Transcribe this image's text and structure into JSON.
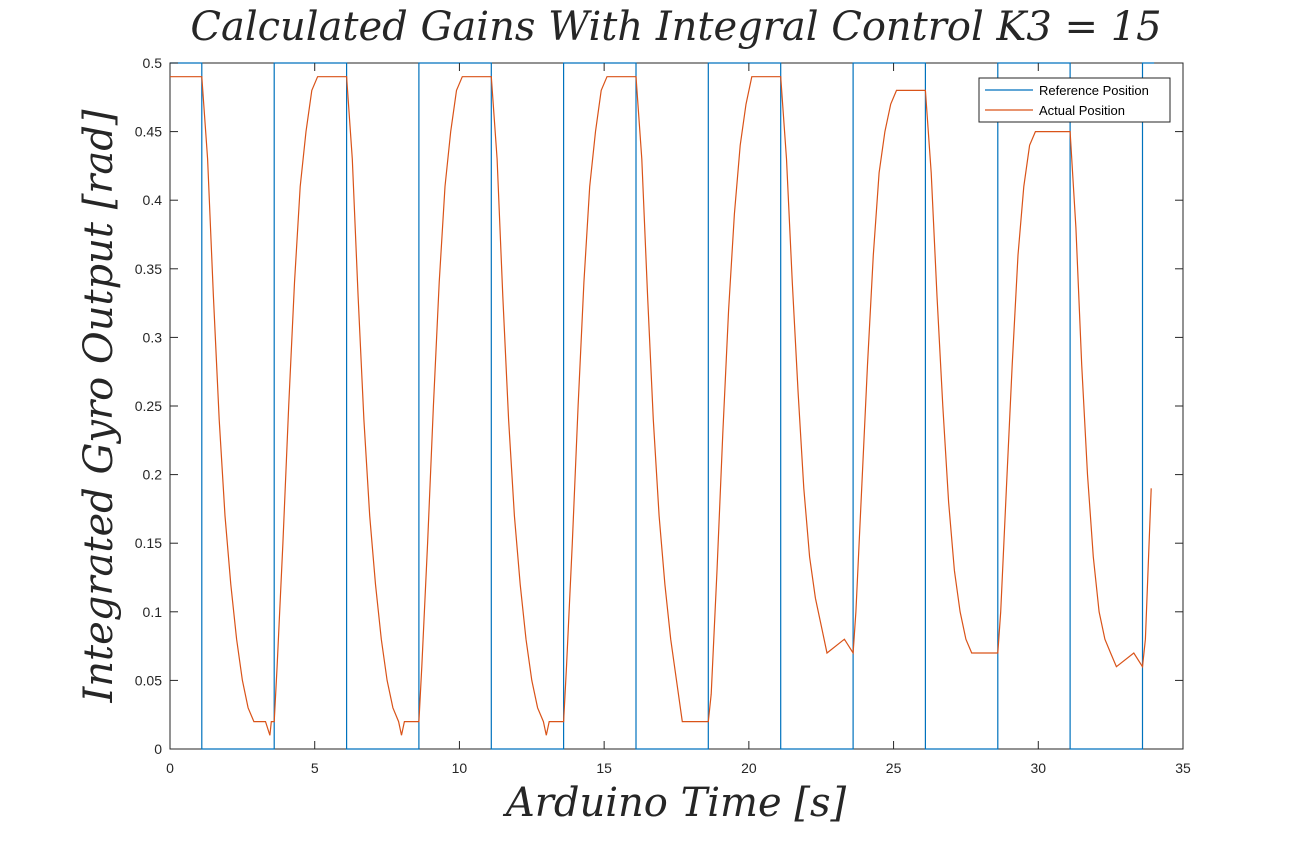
{
  "chart_data": {
    "type": "line",
    "title": "Calculated Gains With Integral Control K3 = 15",
    "xlabel": "Arduino Time [s]",
    "ylabel": "Integrated Gyro Output [rad]",
    "xlim": [
      0,
      35
    ],
    "ylim": [
      0,
      0.5
    ],
    "xticks": [
      0,
      5,
      10,
      15,
      20,
      25,
      30,
      35
    ],
    "yticks": [
      0,
      0.05,
      0.1,
      0.15,
      0.2,
      0.25,
      0.3,
      0.35,
      0.4,
      0.45,
      0.5
    ],
    "grid": false,
    "legend_position": "top-right",
    "series": [
      {
        "name": "Reference Position",
        "color": "#0072BD",
        "x": [
          0,
          1.1,
          1.1,
          3.6,
          3.6,
          6.1,
          6.1,
          8.6,
          8.6,
          11.1,
          11.1,
          13.6,
          13.6,
          16.1,
          16.1,
          18.6,
          18.6,
          21.1,
          21.1,
          23.6,
          23.6,
          26.1,
          26.1,
          28.6,
          28.6,
          31.1,
          31.1,
          33.6,
          33.6,
          34.0
        ],
        "y": [
          0.5,
          0.5,
          0,
          0,
          0.5,
          0.5,
          0,
          0,
          0.5,
          0.5,
          0,
          0,
          0.5,
          0.5,
          0,
          0,
          0.5,
          0.5,
          0,
          0,
          0.5,
          0.5,
          0,
          0,
          0.5,
          0.5,
          0,
          0,
          0.5,
          0.5
        ]
      },
      {
        "name": "Actual Position",
        "color": "#D95319",
        "x": [
          0,
          1.1,
          1.3,
          1.5,
          1.7,
          1.9,
          2.1,
          2.3,
          2.5,
          2.7,
          2.9,
          3.1,
          3.3,
          3.45,
          3.5,
          3.6,
          3.7,
          3.9,
          4.1,
          4.3,
          4.5,
          4.7,
          4.9,
          5.1,
          5.3,
          5.5,
          6.1,
          6.3,
          6.5,
          6.7,
          6.9,
          7.1,
          7.3,
          7.5,
          7.7,
          7.9,
          8.0,
          8.1,
          8.6,
          8.7,
          8.9,
          9.1,
          9.3,
          9.5,
          9.7,
          9.9,
          10.1,
          10.3,
          11.1,
          11.3,
          11.5,
          11.7,
          11.9,
          12.1,
          12.3,
          12.5,
          12.7,
          12.9,
          13.0,
          13.1,
          13.6,
          13.7,
          13.9,
          14.1,
          14.3,
          14.5,
          14.7,
          14.9,
          15.1,
          15.3,
          16.1,
          16.3,
          16.5,
          16.7,
          16.9,
          17.1,
          17.3,
          17.5,
          17.7,
          18.6,
          18.7,
          18.9,
          19.1,
          19.3,
          19.5,
          19.7,
          19.9,
          20.1,
          20.3,
          21.1,
          21.3,
          21.5,
          21.7,
          21.9,
          22.1,
          22.3,
          22.5,
          22.7,
          23.3,
          23.6,
          23.7,
          23.9,
          24.1,
          24.3,
          24.5,
          24.7,
          24.9,
          25.1,
          25.3,
          26.1,
          26.3,
          26.5,
          26.7,
          26.9,
          27.1,
          27.3,
          27.5,
          27.7,
          27.9,
          28.6,
          28.7,
          28.9,
          29.1,
          29.3,
          29.5,
          29.7,
          29.9,
          30.1,
          30.3,
          31.1,
          31.3,
          31.5,
          31.7,
          31.9,
          32.1,
          32.3,
          32.5,
          32.7,
          33.3,
          33.6,
          33.7,
          33.9
        ],
        "y": [
          0.49,
          0.49,
          0.43,
          0.33,
          0.24,
          0.17,
          0.12,
          0.08,
          0.05,
          0.03,
          0.02,
          0.02,
          0.02,
          0.01,
          0.02,
          0.02,
          0.06,
          0.15,
          0.25,
          0.34,
          0.41,
          0.45,
          0.48,
          0.49,
          0.49,
          0.49,
          0.49,
          0.43,
          0.33,
          0.24,
          0.17,
          0.12,
          0.08,
          0.05,
          0.03,
          0.02,
          0.01,
          0.02,
          0.02,
          0.06,
          0.15,
          0.25,
          0.34,
          0.41,
          0.45,
          0.48,
          0.49,
          0.49,
          0.49,
          0.43,
          0.33,
          0.24,
          0.17,
          0.12,
          0.08,
          0.05,
          0.03,
          0.02,
          0.01,
          0.02,
          0.02,
          0.06,
          0.15,
          0.25,
          0.34,
          0.41,
          0.45,
          0.48,
          0.49,
          0.49,
          0.49,
          0.43,
          0.33,
          0.24,
          0.17,
          0.12,
          0.08,
          0.05,
          0.02,
          0.02,
          0.04,
          0.13,
          0.23,
          0.32,
          0.39,
          0.44,
          0.47,
          0.49,
          0.49,
          0.49,
          0.43,
          0.34,
          0.26,
          0.19,
          0.14,
          0.11,
          0.09,
          0.07,
          0.08,
          0.07,
          0.1,
          0.19,
          0.28,
          0.36,
          0.42,
          0.45,
          0.47,
          0.48,
          0.48,
          0.48,
          0.42,
          0.33,
          0.25,
          0.18,
          0.13,
          0.1,
          0.08,
          0.07,
          0.07,
          0.07,
          0.1,
          0.19,
          0.28,
          0.36,
          0.41,
          0.44,
          0.45,
          0.45,
          0.45,
          0.45,
          0.38,
          0.28,
          0.2,
          0.14,
          0.1,
          0.08,
          0.07,
          0.06,
          0.07,
          0.06,
          0.08,
          0.19
        ]
      }
    ]
  }
}
